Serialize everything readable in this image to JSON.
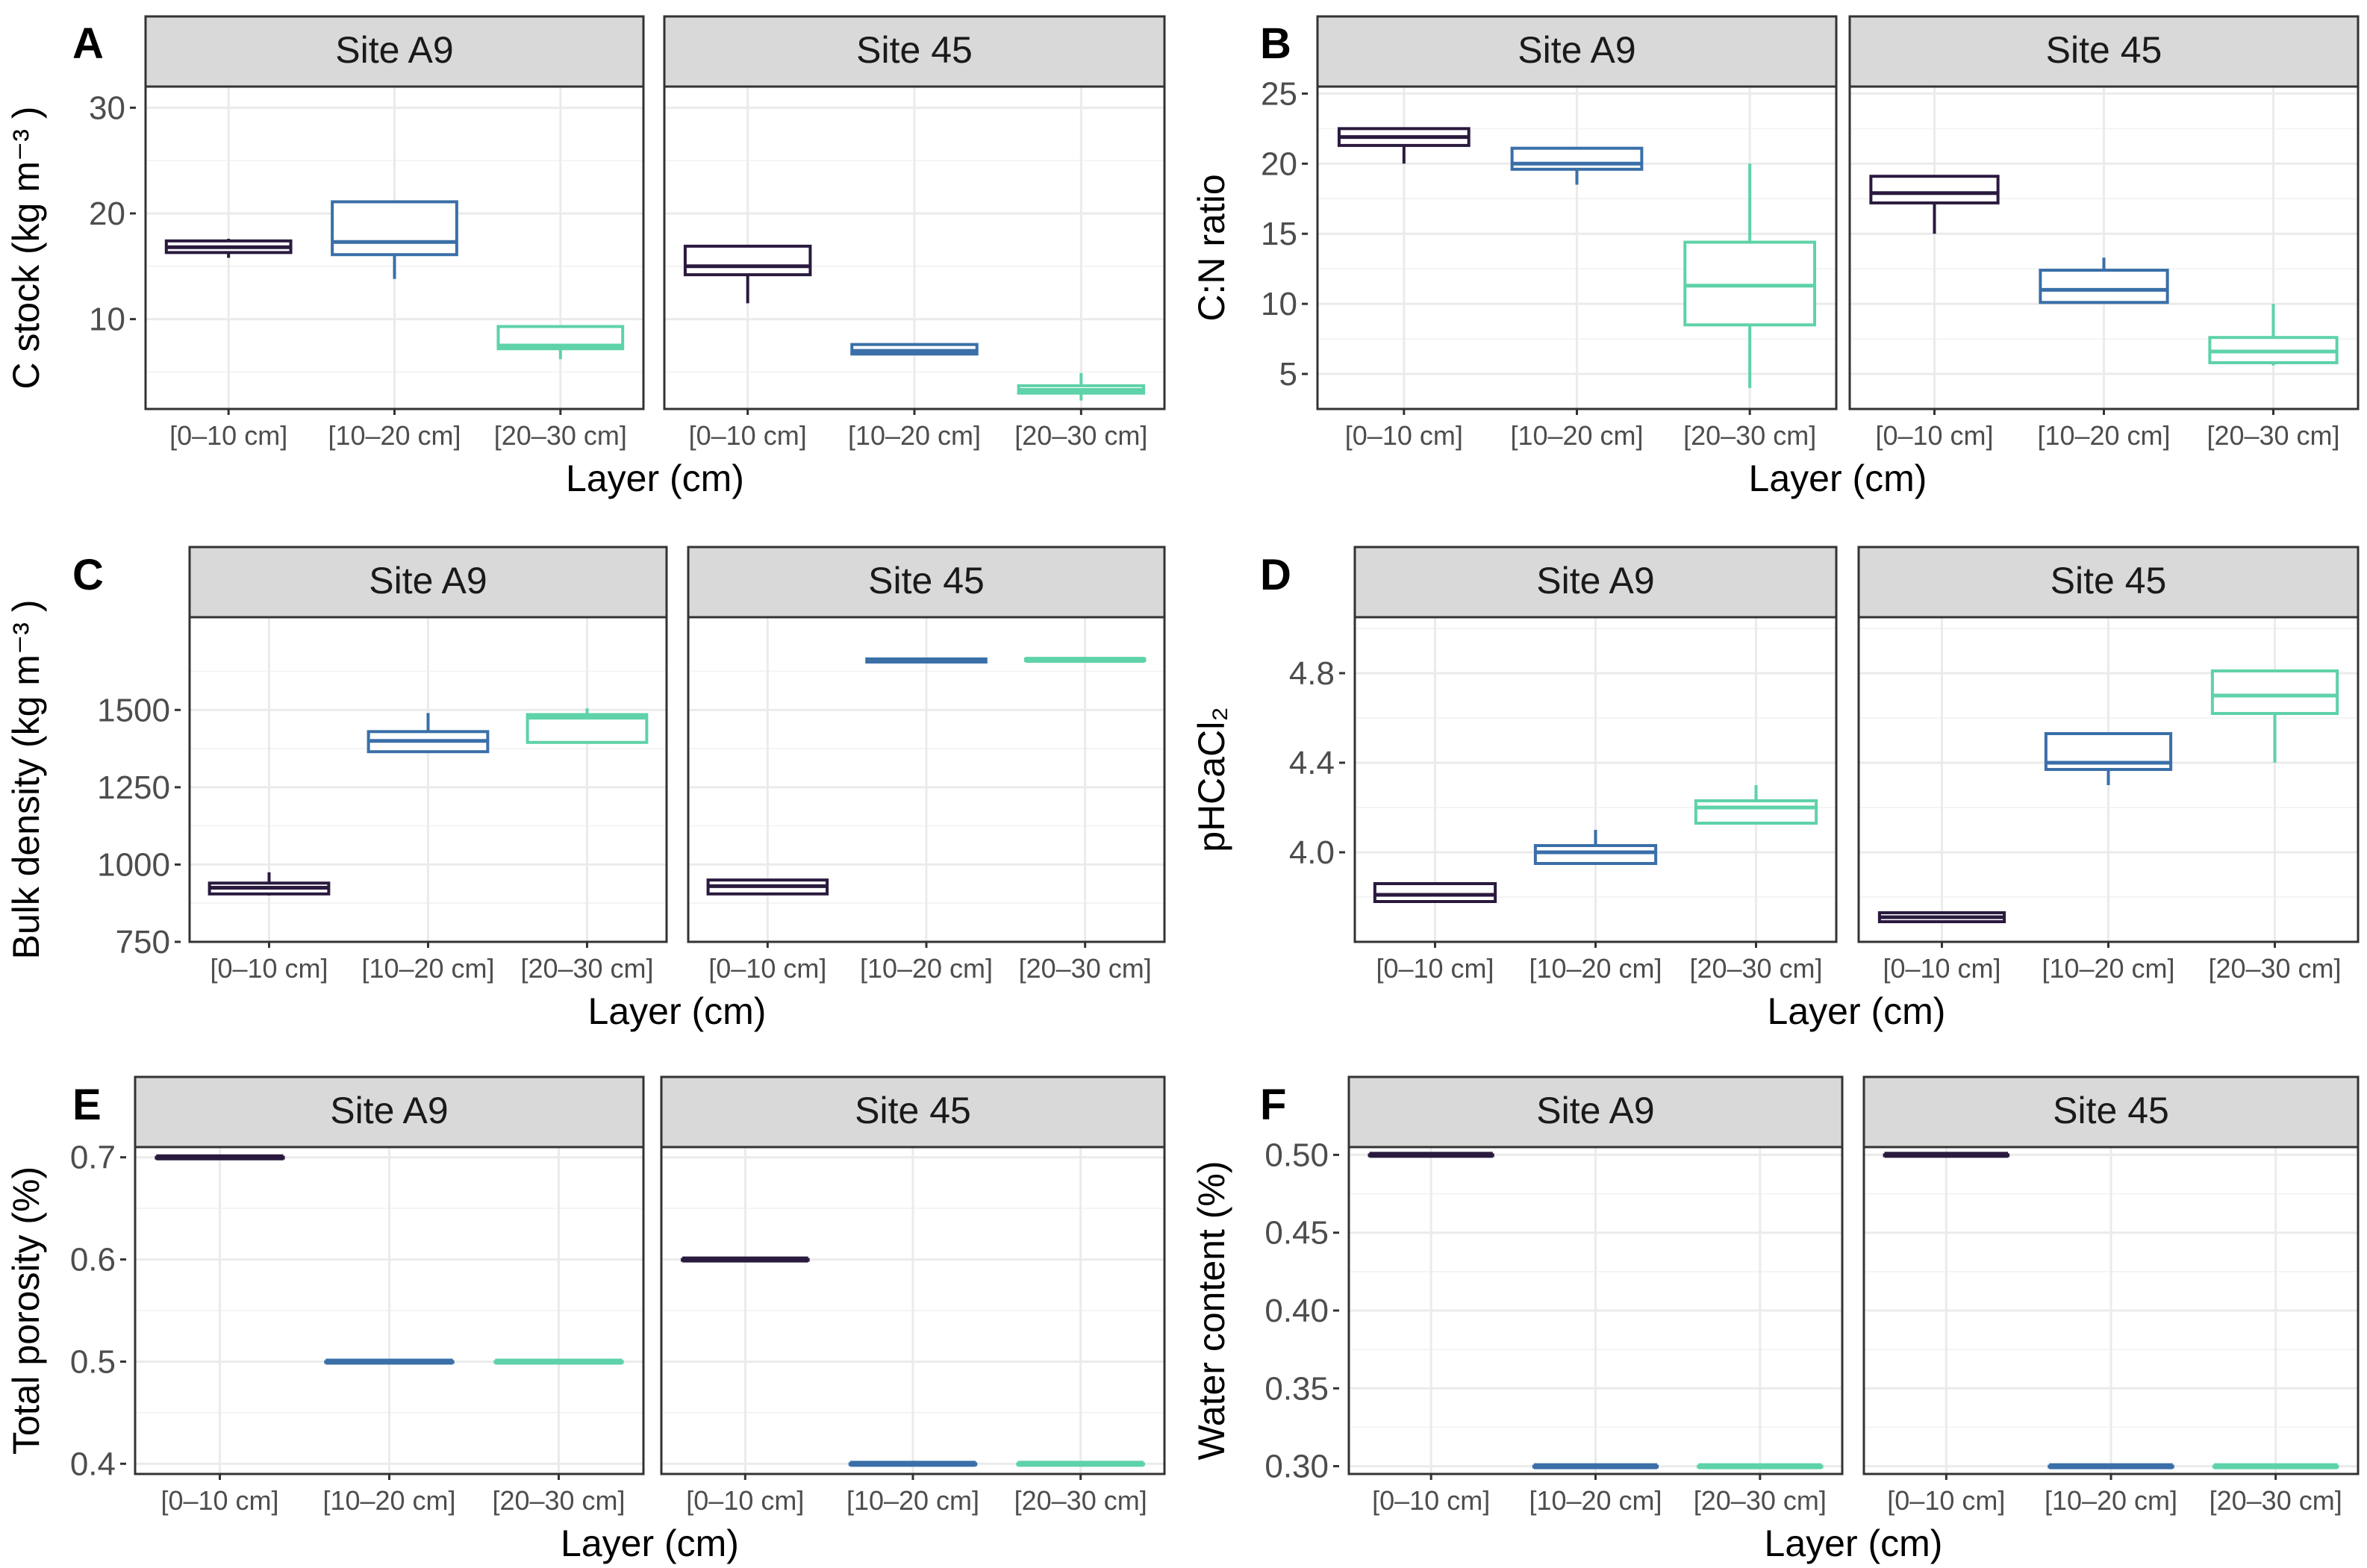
{
  "figure": {
    "facets": [
      "Site A9",
      "Site 45"
    ],
    "layers": [
      "[0–10 cm]",
      "[10–20 cm]",
      "[20–30 cm]"
    ],
    "layer_colors": [
      "#2a1a3e",
      "#3a6fa8",
      "#5ed2a8"
    ],
    "x_label": "Layer (cm)"
  },
  "chart_data": [
    {
      "panel": "A",
      "type": "box",
      "ylabel": "C stock (kg m⁻³ )",
      "ylim": [
        1.5,
        32
      ],
      "yticks": [
        10,
        20,
        30
      ],
      "facets": [
        {
          "name": "Site A9",
          "boxes": [
            {
              "layer": "[0–10 cm]",
              "min": 15.8,
              "q1": 16.3,
              "median": 16.8,
              "q3": 17.4,
              "max": 17.6
            },
            {
              "layer": "[10–20 cm]",
              "min": 13.8,
              "q1": 16.1,
              "median": 17.3,
              "q3": 21.1,
              "max": 21.1
            },
            {
              "layer": "[20–30 cm]",
              "min": 6.2,
              "q1": 7.2,
              "median": 7.5,
              "q3": 9.3,
              "max": 9.3
            }
          ]
        },
        {
          "name": "Site 45",
          "boxes": [
            {
              "layer": "[0–10 cm]",
              "min": 11.5,
              "q1": 14.2,
              "median": 15.0,
              "q3": 16.9,
              "max": 16.9
            },
            {
              "layer": "[10–20 cm]",
              "min": 6.6,
              "q1": 6.7,
              "median": 7.0,
              "q3": 7.6,
              "max": 7.6
            },
            {
              "layer": "[20–30 cm]",
              "min": 2.3,
              "q1": 3.0,
              "median": 3.3,
              "q3": 3.7,
              "max": 4.9
            }
          ]
        }
      ]
    },
    {
      "panel": "B",
      "type": "box",
      "ylabel": "C:N ratio",
      "ylim": [
        2.5,
        25.5
      ],
      "yticks": [
        5,
        10,
        15,
        20,
        25
      ],
      "facets": [
        {
          "name": "Site A9",
          "boxes": [
            {
              "layer": "[0–10 cm]",
              "min": 20.0,
              "q1": 21.3,
              "median": 21.9,
              "q3": 22.5,
              "max": 22.5
            },
            {
              "layer": "[10–20 cm]",
              "min": 18.5,
              "q1": 19.6,
              "median": 20.0,
              "q3": 21.1,
              "max": 21.1
            },
            {
              "layer": "[20–30 cm]",
              "min": 4.0,
              "q1": 8.5,
              "median": 11.3,
              "q3": 14.4,
              "max": 20.0
            }
          ]
        },
        {
          "name": "Site 45",
          "boxes": [
            {
              "layer": "[0–10 cm]",
              "min": 15.0,
              "q1": 17.2,
              "median": 17.9,
              "q3": 19.1,
              "max": 19.1
            },
            {
              "layer": "[10–20 cm]",
              "min": 10.0,
              "q1": 10.1,
              "median": 11.0,
              "q3": 12.4,
              "max": 13.3
            },
            {
              "layer": "[20–30 cm]",
              "min": 5.6,
              "q1": 5.8,
              "median": 6.6,
              "q3": 7.6,
              "max": 10.0
            }
          ]
        }
      ]
    },
    {
      "panel": "C",
      "type": "box",
      "ylabel": "Bulk density (kg m⁻³ )",
      "ylim": [
        750,
        1800
      ],
      "yticks": [
        750,
        1000,
        1250,
        1500
      ],
      "facets": [
        {
          "name": "Site A9",
          "boxes": [
            {
              "layer": "[0–10 cm]",
              "min": 900,
              "q1": 905,
              "median": 925,
              "q3": 940,
              "max": 975
            },
            {
              "layer": "[10–20 cm]",
              "min": 1365,
              "q1": 1365,
              "median": 1400,
              "q3": 1430,
              "max": 1490
            },
            {
              "layer": "[20–30 cm]",
              "min": 1395,
              "q1": 1395,
              "median": 1475,
              "q3": 1485,
              "max": 1505
            }
          ]
        },
        {
          "name": "Site 45",
          "boxes": [
            {
              "layer": "[0–10 cm]",
              "min": 905,
              "q1": 905,
              "median": 930,
              "q3": 950,
              "max": 950
            },
            {
              "layer": "[10–20 cm]",
              "min": 1655,
              "q1": 1655,
              "median": 1660,
              "q3": 1665,
              "max": 1665
            },
            {
              "layer": "[20–30 cm]",
              "min": 1660,
              "q1": 1660,
              "median": 1662,
              "q3": 1665,
              "max": 1665
            }
          ]
        }
      ]
    },
    {
      "panel": "D",
      "type": "box",
      "ylabel": "pHCaCl₂",
      "ylim": [
        3.6,
        5.05
      ],
      "yticks": [
        4.0,
        4.4,
        4.8
      ],
      "ytick_labels": [
        "4.0",
        "4.4",
        "4.8"
      ],
      "facets": [
        {
          "name": "Site A9",
          "boxes": [
            {
              "layer": "[0–10 cm]",
              "min": 3.78,
              "q1": 3.78,
              "median": 3.81,
              "q3": 3.86,
              "max": 3.86
            },
            {
              "layer": "[10–20 cm]",
              "min": 3.95,
              "q1": 3.95,
              "median": 4.0,
              "q3": 4.03,
              "max": 4.1
            },
            {
              "layer": "[20–30 cm]",
              "min": 4.13,
              "q1": 4.13,
              "median": 4.2,
              "q3": 4.23,
              "max": 4.3
            }
          ]
        },
        {
          "name": "Site 45",
          "boxes": [
            {
              "layer": "[0–10 cm]",
              "min": 3.69,
              "q1": 3.69,
              "median": 3.71,
              "q3": 3.73,
              "max": 3.73
            },
            {
              "layer": "[10–20 cm]",
              "min": 4.3,
              "q1": 4.37,
              "median": 4.4,
              "q3": 4.53,
              "max": 4.53
            },
            {
              "layer": "[20–30 cm]",
              "min": 4.4,
              "q1": 4.62,
              "median": 4.7,
              "q3": 4.81,
              "max": 4.81
            }
          ]
        }
      ]
    },
    {
      "panel": "E",
      "type": "box",
      "ylabel": "Total porosity (%)",
      "ylim": [
        0.39,
        0.71
      ],
      "yticks": [
        0.4,
        0.5,
        0.6,
        0.7
      ],
      "ytick_labels": [
        "0.4",
        "0.5",
        "0.6",
        "0.7"
      ],
      "facets": [
        {
          "name": "Site A9",
          "boxes": [
            {
              "layer": "[0–10 cm]",
              "min": 0.7,
              "q1": 0.7,
              "median": 0.7,
              "q3": 0.7,
              "max": 0.7
            },
            {
              "layer": "[10–20 cm]",
              "min": 0.5,
              "q1": 0.5,
              "median": 0.5,
              "q3": 0.5,
              "max": 0.5
            },
            {
              "layer": "[20–30 cm]",
              "min": 0.5,
              "q1": 0.5,
              "median": 0.5,
              "q3": 0.5,
              "max": 0.5
            }
          ]
        },
        {
          "name": "Site 45",
          "boxes": [
            {
              "layer": "[0–10 cm]",
              "min": 0.6,
              "q1": 0.6,
              "median": 0.6,
              "q3": 0.6,
              "max": 0.6
            },
            {
              "layer": "[10–20 cm]",
              "min": 0.4,
              "q1": 0.4,
              "median": 0.4,
              "q3": 0.4,
              "max": 0.4
            },
            {
              "layer": "[20–30 cm]",
              "min": 0.4,
              "q1": 0.4,
              "median": 0.4,
              "q3": 0.4,
              "max": 0.4
            }
          ]
        }
      ]
    },
    {
      "panel": "F",
      "type": "box",
      "ylabel": "Water content (%)",
      "ylim": [
        0.295,
        0.505
      ],
      "yticks": [
        0.3,
        0.35,
        0.4,
        0.45,
        0.5
      ],
      "ytick_labels": [
        "0.30",
        "0.35",
        "0.40",
        "0.45",
        "0.50"
      ],
      "facets": [
        {
          "name": "Site A9",
          "boxes": [
            {
              "layer": "[0–10 cm]",
              "min": 0.5,
              "q1": 0.5,
              "median": 0.5,
              "q3": 0.5,
              "max": 0.5
            },
            {
              "layer": "[10–20 cm]",
              "min": 0.3,
              "q1": 0.3,
              "median": 0.3,
              "q3": 0.3,
              "max": 0.3
            },
            {
              "layer": "[20–30 cm]",
              "min": 0.3,
              "q1": 0.3,
              "median": 0.3,
              "q3": 0.3,
              "max": 0.3
            }
          ]
        },
        {
          "name": "Site 45",
          "boxes": [
            {
              "layer": "[0–10 cm]",
              "min": 0.5,
              "q1": 0.5,
              "median": 0.5,
              "q3": 0.5,
              "max": 0.5
            },
            {
              "layer": "[10–20 cm]",
              "min": 0.3,
              "q1": 0.3,
              "median": 0.3,
              "q3": 0.3,
              "max": 0.3
            },
            {
              "layer": "[20–30 cm]",
              "min": 0.3,
              "q1": 0.3,
              "median": 0.3,
              "q3": 0.3,
              "max": 0.3
            }
          ]
        }
      ]
    }
  ]
}
